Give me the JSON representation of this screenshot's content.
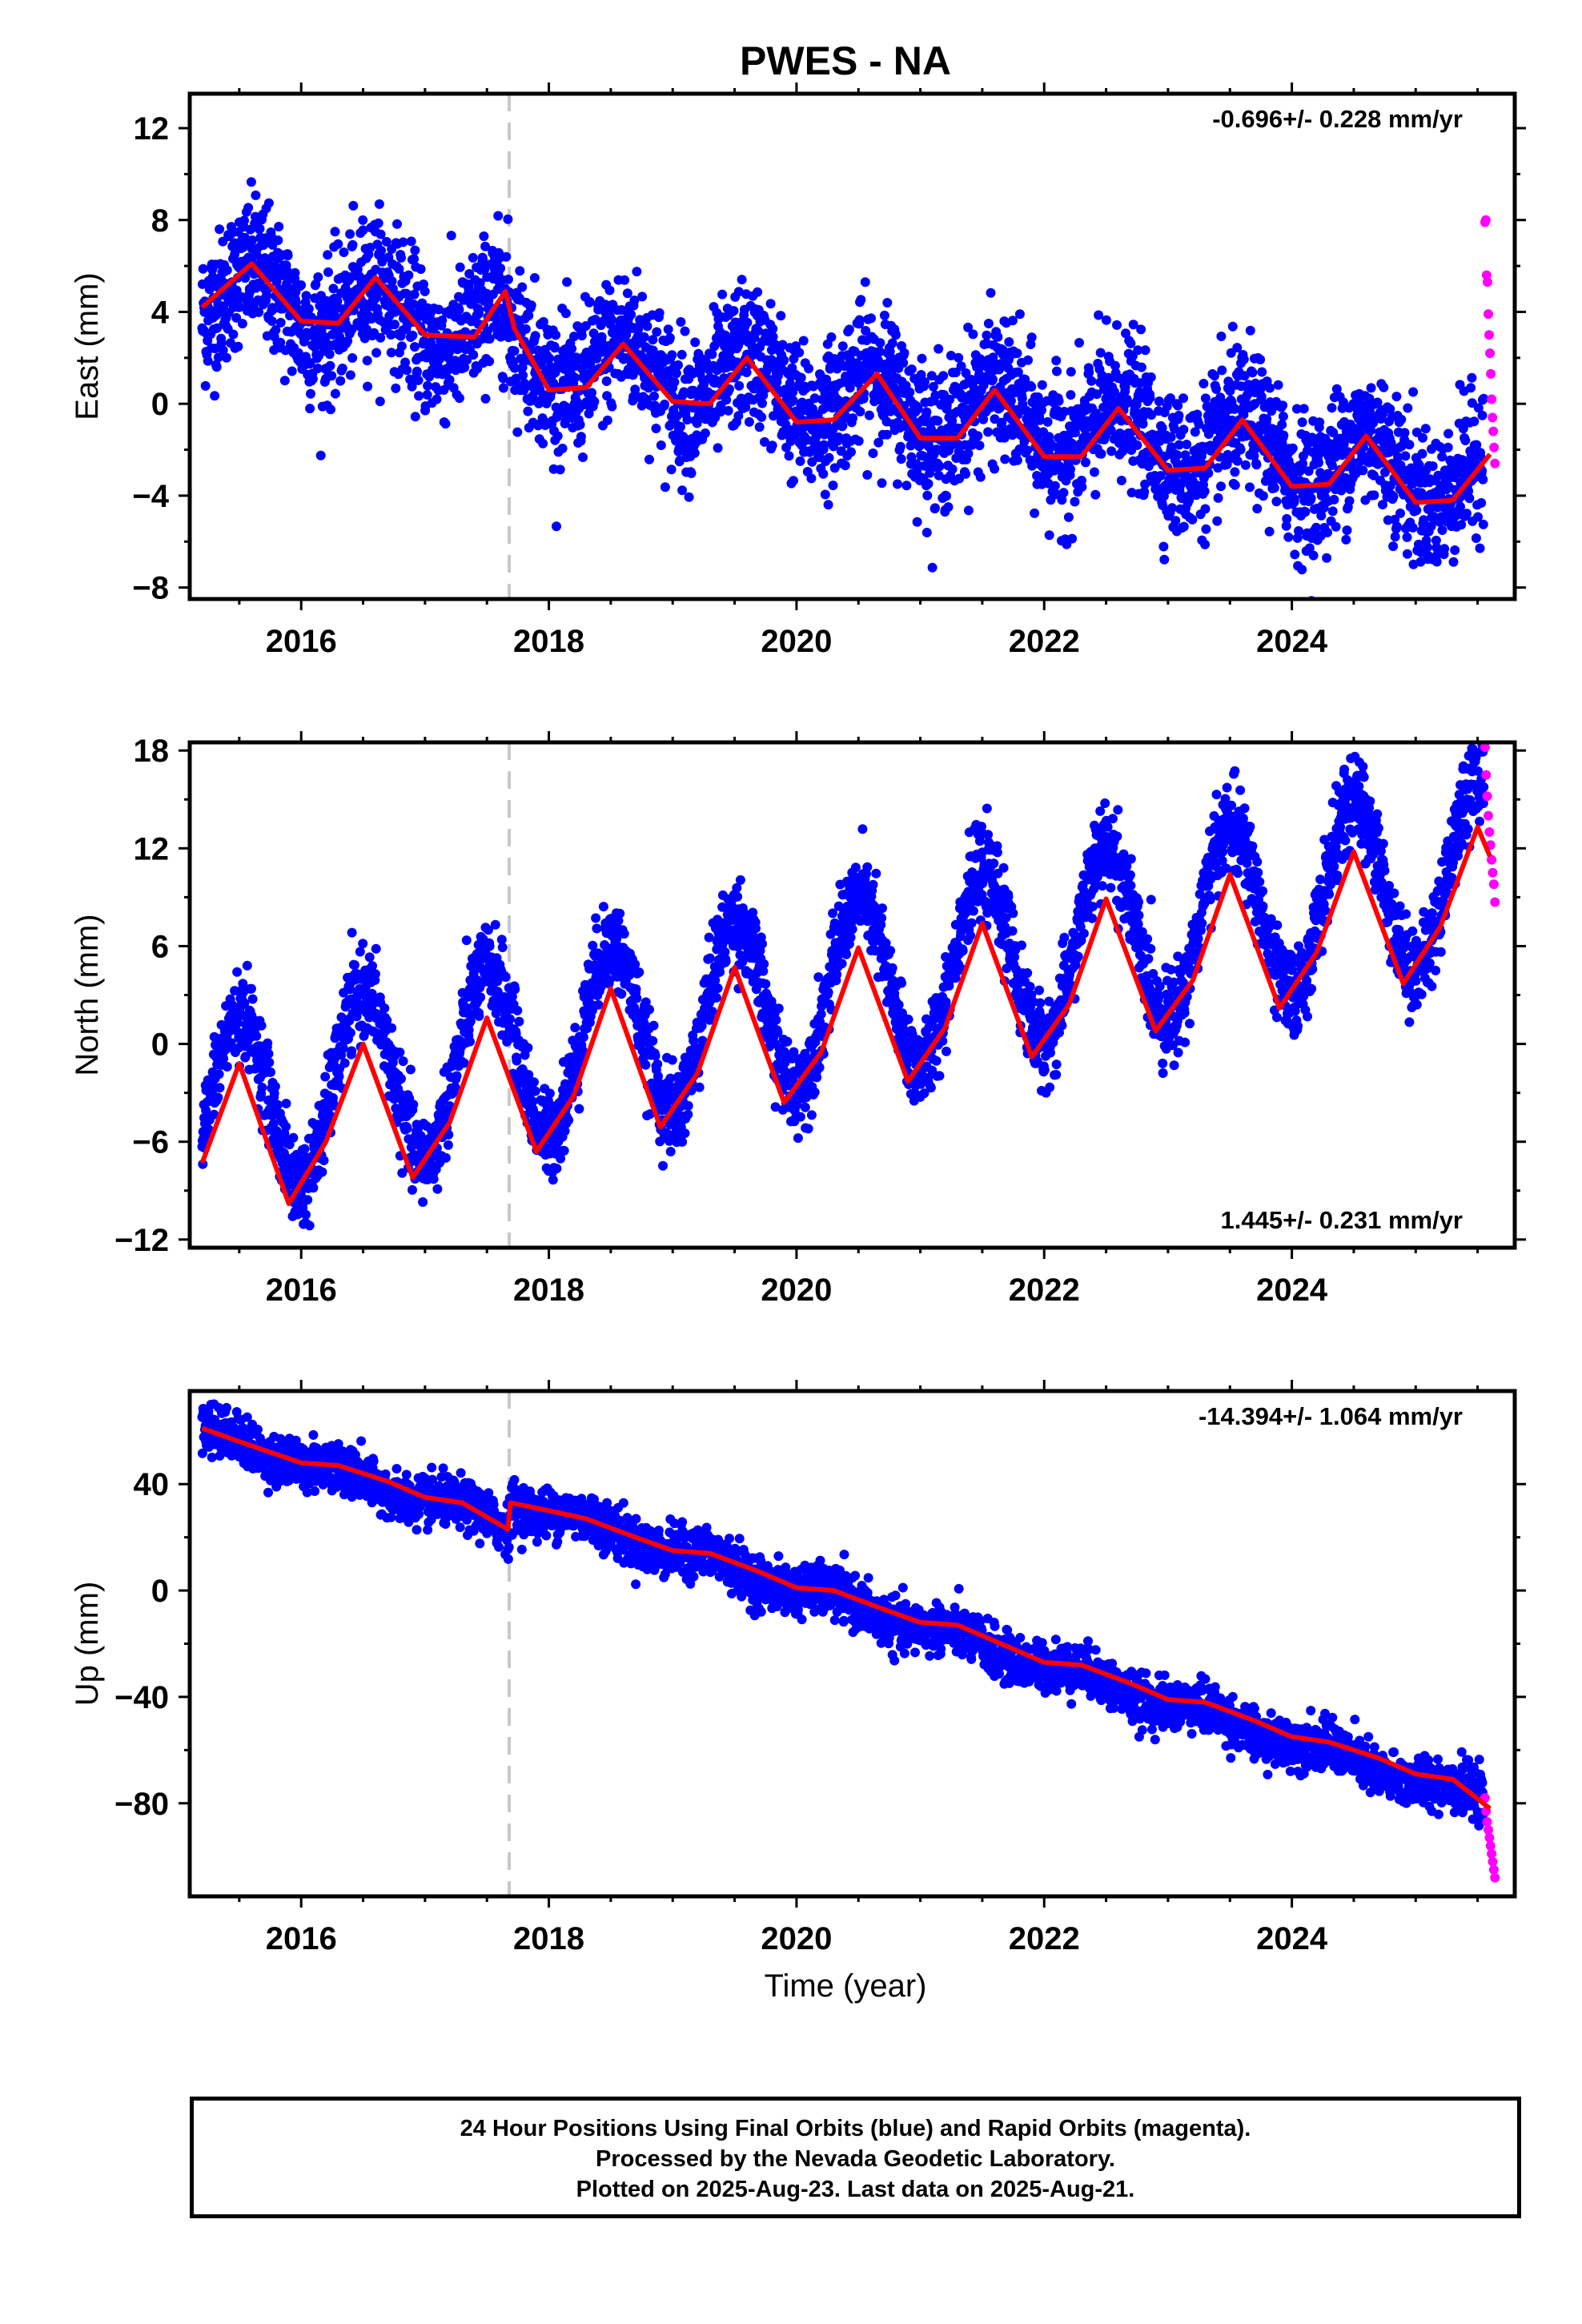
{
  "title": "PWES - NA",
  "xlabel": "Time (year)",
  "footer": {
    "line1": "24 Hour Positions Using Final Orbits (blue) and Rapid Orbits (magenta).",
    "line2": "Processed by the Nevada Geodetic Laboratory.",
    "line3": "Plotted on 2025-Aug-23. Last data on 2025-Aug-21."
  },
  "colors": {
    "final_orbits": "#0000ff",
    "rapid_orbits": "#ff00ff",
    "model": "#ff0000",
    "event_line": "#c8c8c8"
  },
  "chart_data": [
    {
      "type": "scatter",
      "panel": "east",
      "ylabel": "East (mm)",
      "rate_label": "-0.696+/- 0.228 mm/yr",
      "xlim": [
        2015.1,
        2025.8
      ],
      "ylim": [
        -8.5,
        13.5
      ],
      "yticks": [
        -8,
        -4,
        0,
        4,
        8,
        12
      ],
      "xticks": [
        2016,
        2018,
        2020,
        2022,
        2024
      ],
      "event_line_x": 2017.68,
      "model": {
        "mean": 4.9,
        "slope": -0.696,
        "t0": 2015.2,
        "amplitude": 1.3,
        "peak_phase": 0.62,
        "noise": 1.5,
        "offset_after_event": -1.0
      },
      "series": [
        {
          "name": "Final Orbits",
          "x_range": [
            2015.2,
            2025.55
          ]
        },
        {
          "name": "Rapid Orbits",
          "x_range": [
            2025.56,
            2025.64
          ],
          "y": [
            7.9,
            8.0,
            5.6,
            5.3,
            3.9,
            3.0,
            2.2,
            1.3,
            0.2,
            -0.6,
            -1.2,
            -1.9,
            -2.6
          ]
        }
      ],
      "fit_line": {
        "x": [
          2015.2,
          2015.6,
          2016.0,
          2016.3,
          2016.6,
          2017.0,
          2017.4,
          2017.65,
          2017.72,
          2018.0,
          2018.3,
          2018.6,
          2019.0,
          2019.3,
          2019.6,
          2020.0,
          2020.3,
          2020.65,
          2021.0,
          2021.3,
          2021.6,
          2022.0,
          2022.3,
          2022.6,
          2023.0,
          2023.3,
          2023.6,
          2024.0,
          2024.3,
          2024.6,
          2025.0,
          2025.3,
          2025.6
        ],
        "y": [
          4.2,
          6.1,
          3.6,
          3.5,
          5.5,
          3.0,
          2.9,
          4.9,
          3.3,
          0.6,
          0.7,
          2.6,
          0.1,
          0.0,
          2.0,
          -0.8,
          -0.7,
          1.3,
          -1.5,
          -1.5,
          0.6,
          -2.3,
          -2.3,
          -0.2,
          -2.9,
          -2.8,
          -0.7,
          -3.6,
          -3.5,
          -1.4,
          -4.3,
          -4.2,
          -2.2
        ]
      }
    },
    {
      "type": "scatter",
      "panel": "north",
      "ylabel": "North (mm)",
      "rate_label": "1.445+/- 0.231 mm/yr",
      "xlim": [
        2015.1,
        2025.8
      ],
      "ylim": [
        -12.5,
        18.5
      ],
      "yticks": [
        -12,
        -6,
        0,
        6,
        12,
        18
      ],
      "xticks": [
        2016,
        2018,
        2020,
        2022,
        2024
      ],
      "event_line_x": 2017.68,
      "model": {
        "mean": -4.2,
        "slope": 1.445,
        "t0": 2015.2,
        "amplitude": 5.5,
        "peak_phase": 0.5,
        "noise": 1.3,
        "offset_after_event": 0
      },
      "series": [
        {
          "name": "Final Orbits",
          "x_range": [
            2015.2,
            2025.55
          ]
        },
        {
          "name": "Rapid Orbits",
          "x_range": [
            2025.56,
            2025.64
          ],
          "y": [
            18.2,
            16.5,
            15.2,
            14.0,
            13.0,
            12.2,
            11.3,
            10.5,
            9.8,
            8.7
          ]
        }
      ],
      "fit_line": {
        "x": [
          2015.2,
          2015.5,
          2015.9,
          2016.2,
          2016.5,
          2016.9,
          2017.2,
          2017.5,
          2017.9,
          2018.2,
          2018.5,
          2018.9,
          2019.2,
          2019.5,
          2019.9,
          2020.2,
          2020.5,
          2020.9,
          2021.2,
          2021.5,
          2021.9,
          2022.2,
          2022.5,
          2022.9,
          2023.2,
          2023.5,
          2023.9,
          2024.2,
          2024.5,
          2024.9,
          2025.2,
          2025.5,
          2025.6
        ],
        "y": [
          -7.3,
          -1.2,
          -9.8,
          -6.0,
          0.0,
          -8.2,
          -4.8,
          1.6,
          -6.6,
          -3.2,
          3.4,
          -5.1,
          -1.8,
          4.7,
          -3.6,
          -0.5,
          5.9,
          -2.3,
          1.0,
          7.4,
          -0.8,
          2.4,
          8.9,
          0.8,
          3.9,
          10.4,
          2.2,
          5.6,
          11.8,
          3.7,
          7.2,
          13.3,
          11.5
        ]
      }
    },
    {
      "type": "scatter",
      "panel": "up",
      "ylabel": "Up (mm)",
      "rate_label": "-14.394+/- 1.064 mm/yr",
      "xlim": [
        2015.1,
        2025.8
      ],
      "ylim": [
        -115,
        75
      ],
      "yticks": [
        -80,
        -40,
        0,
        40
      ],
      "xticks": [
        2016,
        2018,
        2020,
        2022,
        2024
      ],
      "event_line_x": 2017.68,
      "model": {
        "mean": 60,
        "slope": -14.394,
        "t0": 2015.2,
        "amplitude": 2.5,
        "peak_phase": 0.3,
        "noise": 4.5,
        "offset_after_event": 10
      },
      "series": [
        {
          "name": "Final Orbits",
          "x_range": [
            2015.2,
            2025.55
          ]
        },
        {
          "name": "Rapid Orbits",
          "x_range": [
            2025.56,
            2025.64
          ],
          "y": [
            -78,
            -83,
            -87,
            -90,
            -93,
            -96,
            -99,
            -102,
            -105,
            -108
          ]
        }
      ],
      "fit_line": {
        "x": [
          2015.2,
          2015.5,
          2016.0,
          2016.3,
          2016.7,
          2017.0,
          2017.3,
          2017.67,
          2017.69,
          2018.0,
          2018.3,
          2018.7,
          2019.0,
          2019.3,
          2019.7,
          2020.0,
          2020.3,
          2020.7,
          2021.0,
          2021.3,
          2021.7,
          2022.0,
          2022.3,
          2022.7,
          2023.0,
          2023.3,
          2023.7,
          2024.0,
          2024.3,
          2024.7,
          2025.0,
          2025.3,
          2025.6
        ],
        "y": [
          61,
          56,
          48,
          47,
          41,
          35,
          33,
          23,
          33,
          30,
          27,
          20,
          15,
          14,
          7,
          1,
          0,
          -7,
          -12,
          -13,
          -21,
          -27,
          -28,
          -35,
          -41,
          -42,
          -49,
          -55,
          -57,
          -63,
          -69,
          -71,
          -82
        ]
      }
    }
  ]
}
